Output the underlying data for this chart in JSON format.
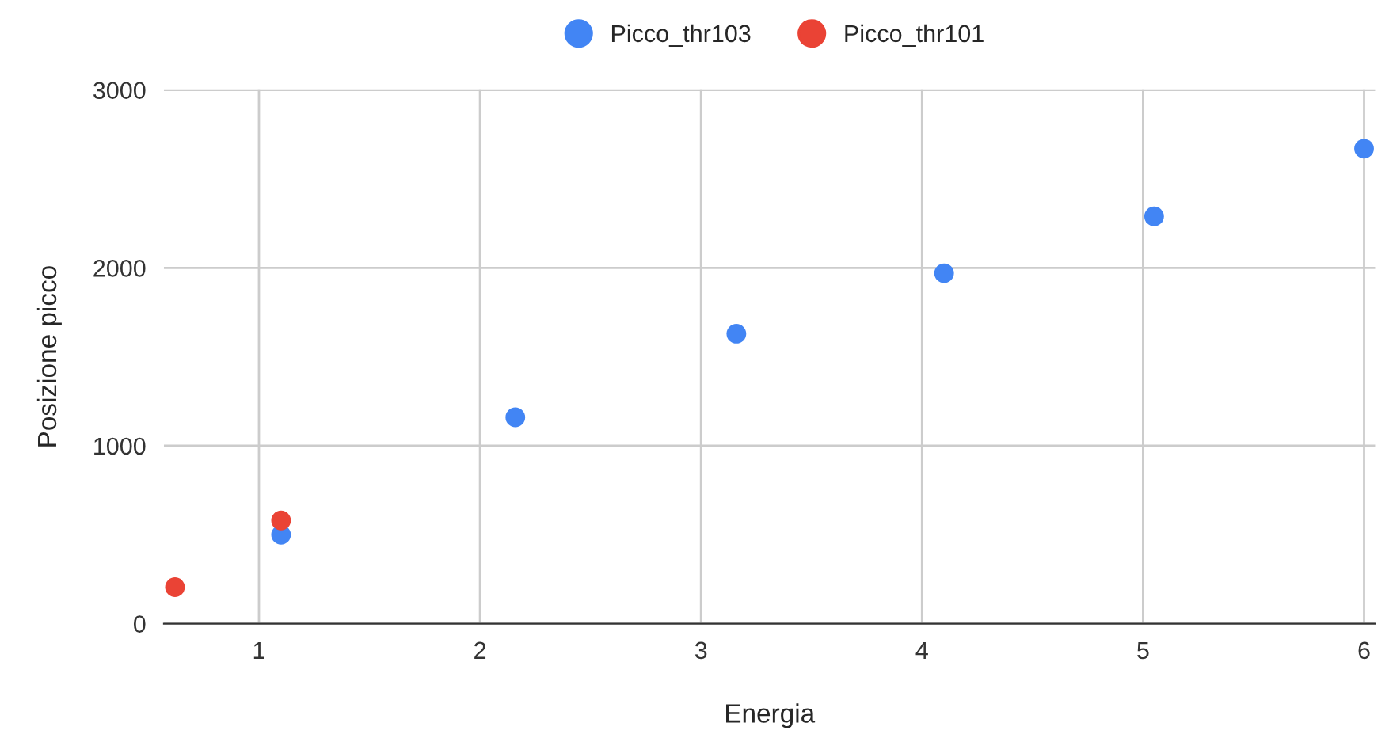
{
  "chart_data": {
    "type": "scatter",
    "xlabel": "Energia",
    "ylabel": "Posizione picco",
    "series": [
      {
        "name": "Picco_thr103",
        "color": "#4285f4",
        "x": [
          1.1,
          2.16,
          3.16,
          4.1,
          5.05,
          6.0
        ],
        "values": [
          500,
          1160,
          1630,
          1970,
          2290,
          2670
        ]
      },
      {
        "name": "Picco_thr101",
        "color": "#ea4335",
        "x": [
          0.62,
          1.1
        ],
        "values": [
          205,
          580
        ]
      }
    ],
    "xlim": [
      0.57,
      6.05
    ],
    "xticks": [
      1,
      2,
      3,
      4,
      5,
      6
    ],
    "ylim": [
      0,
      3000
    ],
    "yticks": [
      0,
      1000,
      2000,
      3000
    ],
    "grid": true,
    "legend": "top",
    "marker": "circle"
  }
}
